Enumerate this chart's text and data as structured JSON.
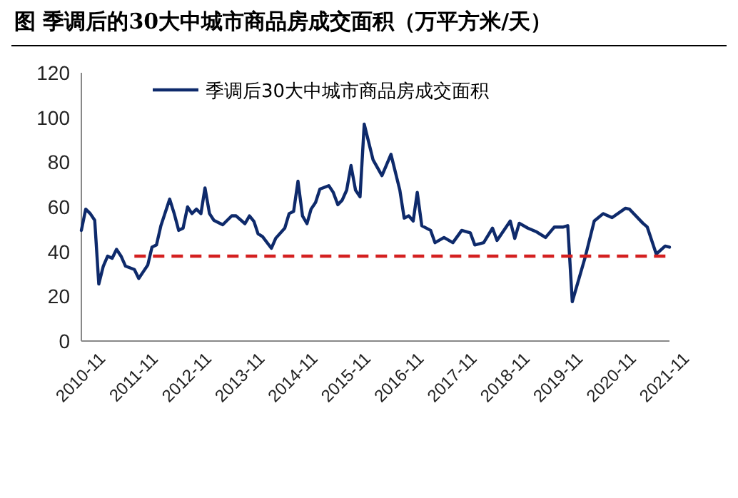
{
  "chart_data": {
    "type": "line",
    "title": "图 季调后的30大中城市商品房成交面积（万平方米/天）",
    "xlim": [
      "2010-11",
      "2021-12"
    ],
    "xticks": [
      "2010-11",
      "2011-11",
      "2012-11",
      "2013-11",
      "2014-11",
      "2015-11",
      "2016-11",
      "2017-11",
      "2018-11",
      "2019-11",
      "2020-11",
      "2021-11"
    ],
    "ylim": [
      0,
      120
    ],
    "yticks": [
      0,
      20,
      40,
      60,
      80,
      100,
      120
    ],
    "grid": false,
    "legend": "top",
    "line_style": "solid",
    "marker": "none",
    "series": [
      {
        "name": "季调后30大中城市商品房成交面积",
        "color": "#0e2a6b",
        "x": [
          "2010-11",
          "2010-12",
          "2011-01",
          "2011-02",
          "2011-03",
          "2011-04",
          "2011-05",
          "2011-06",
          "2011-07",
          "2011-08",
          "2011-09",
          "2011-11",
          "2011-12",
          "2012-01",
          "2012-02",
          "2012-03",
          "2012-04",
          "2012-05",
          "2012-07",
          "2012-08",
          "2012-09",
          "2012-10",
          "2012-11",
          "2012-12",
          "2013-01",
          "2013-02",
          "2013-03",
          "2013-04",
          "2013-05",
          "2013-06",
          "2013-07",
          "2013-09",
          "2013-10",
          "2013-12",
          "2014-01",
          "2014-02",
          "2014-03",
          "2014-04",
          "2014-06",
          "2014-07",
          "2014-09",
          "2014-10",
          "2014-11",
          "2014-12",
          "2015-01",
          "2015-02",
          "2015-03",
          "2015-04",
          "2015-05",
          "2015-07",
          "2015-08",
          "2015-09",
          "2015-10",
          "2015-11",
          "2015-12",
          "2016-01",
          "2016-02",
          "2016-03",
          "2016-05",
          "2016-07",
          "2016-09",
          "2016-11",
          "2016-12",
          "2017-01",
          "2017-02",
          "2017-03",
          "2017-04",
          "2017-06",
          "2017-07",
          "2017-09",
          "2017-11",
          "2018-01",
          "2018-03",
          "2018-04",
          "2018-06",
          "2018-08",
          "2018-09",
          "2018-12",
          "2019-01",
          "2019-02",
          "2019-04",
          "2019-06",
          "2019-08",
          "2019-10",
          "2019-12",
          "2020-01",
          "2020-02",
          "2020-05",
          "2020-07",
          "2020-09",
          "2020-11",
          "2021-02",
          "2021-03",
          "2021-06",
          "2021-07",
          "2021-09",
          "2021-11",
          "2021-12"
        ],
        "values": [
          49.5,
          59,
          57,
          54,
          25.5,
          33.5,
          38,
          37,
          41,
          38,
          33.5,
          32,
          28,
          31,
          34,
          42,
          43,
          51.5,
          63.5,
          57,
          49.5,
          50.5,
          60,
          57,
          59,
          57,
          68.5,
          57,
          54,
          53,
          52,
          56,
          56,
          52.5,
          56,
          53.5,
          48,
          46.7,
          41.5,
          46,
          50.5,
          57,
          58,
          71.5,
          56,
          52.5,
          59,
          62,
          68,
          69.5,
          66.5,
          61,
          63,
          67.5,
          78.5,
          67.5,
          64.5,
          97,
          81,
          74,
          83.5,
          67.5,
          55,
          56,
          53.7,
          66.5,
          51.6,
          49.5,
          44,
          46.3,
          44,
          49.5,
          48.4,
          43,
          44,
          50.5,
          45,
          53.7,
          45.9,
          52.7,
          50.5,
          48.8,
          46.3,
          51,
          51,
          51.6,
          17.6,
          37.8,
          53.7,
          57,
          55.2,
          59.4,
          59,
          52.7,
          51,
          38.9,
          42.5,
          42
        ]
      },
      {
        "color": "#d42020",
        "line_style": "dashed",
        "x": [
          "2011-11",
          "2021-12"
        ],
        "values": [
          38,
          38
        ]
      }
    ]
  }
}
